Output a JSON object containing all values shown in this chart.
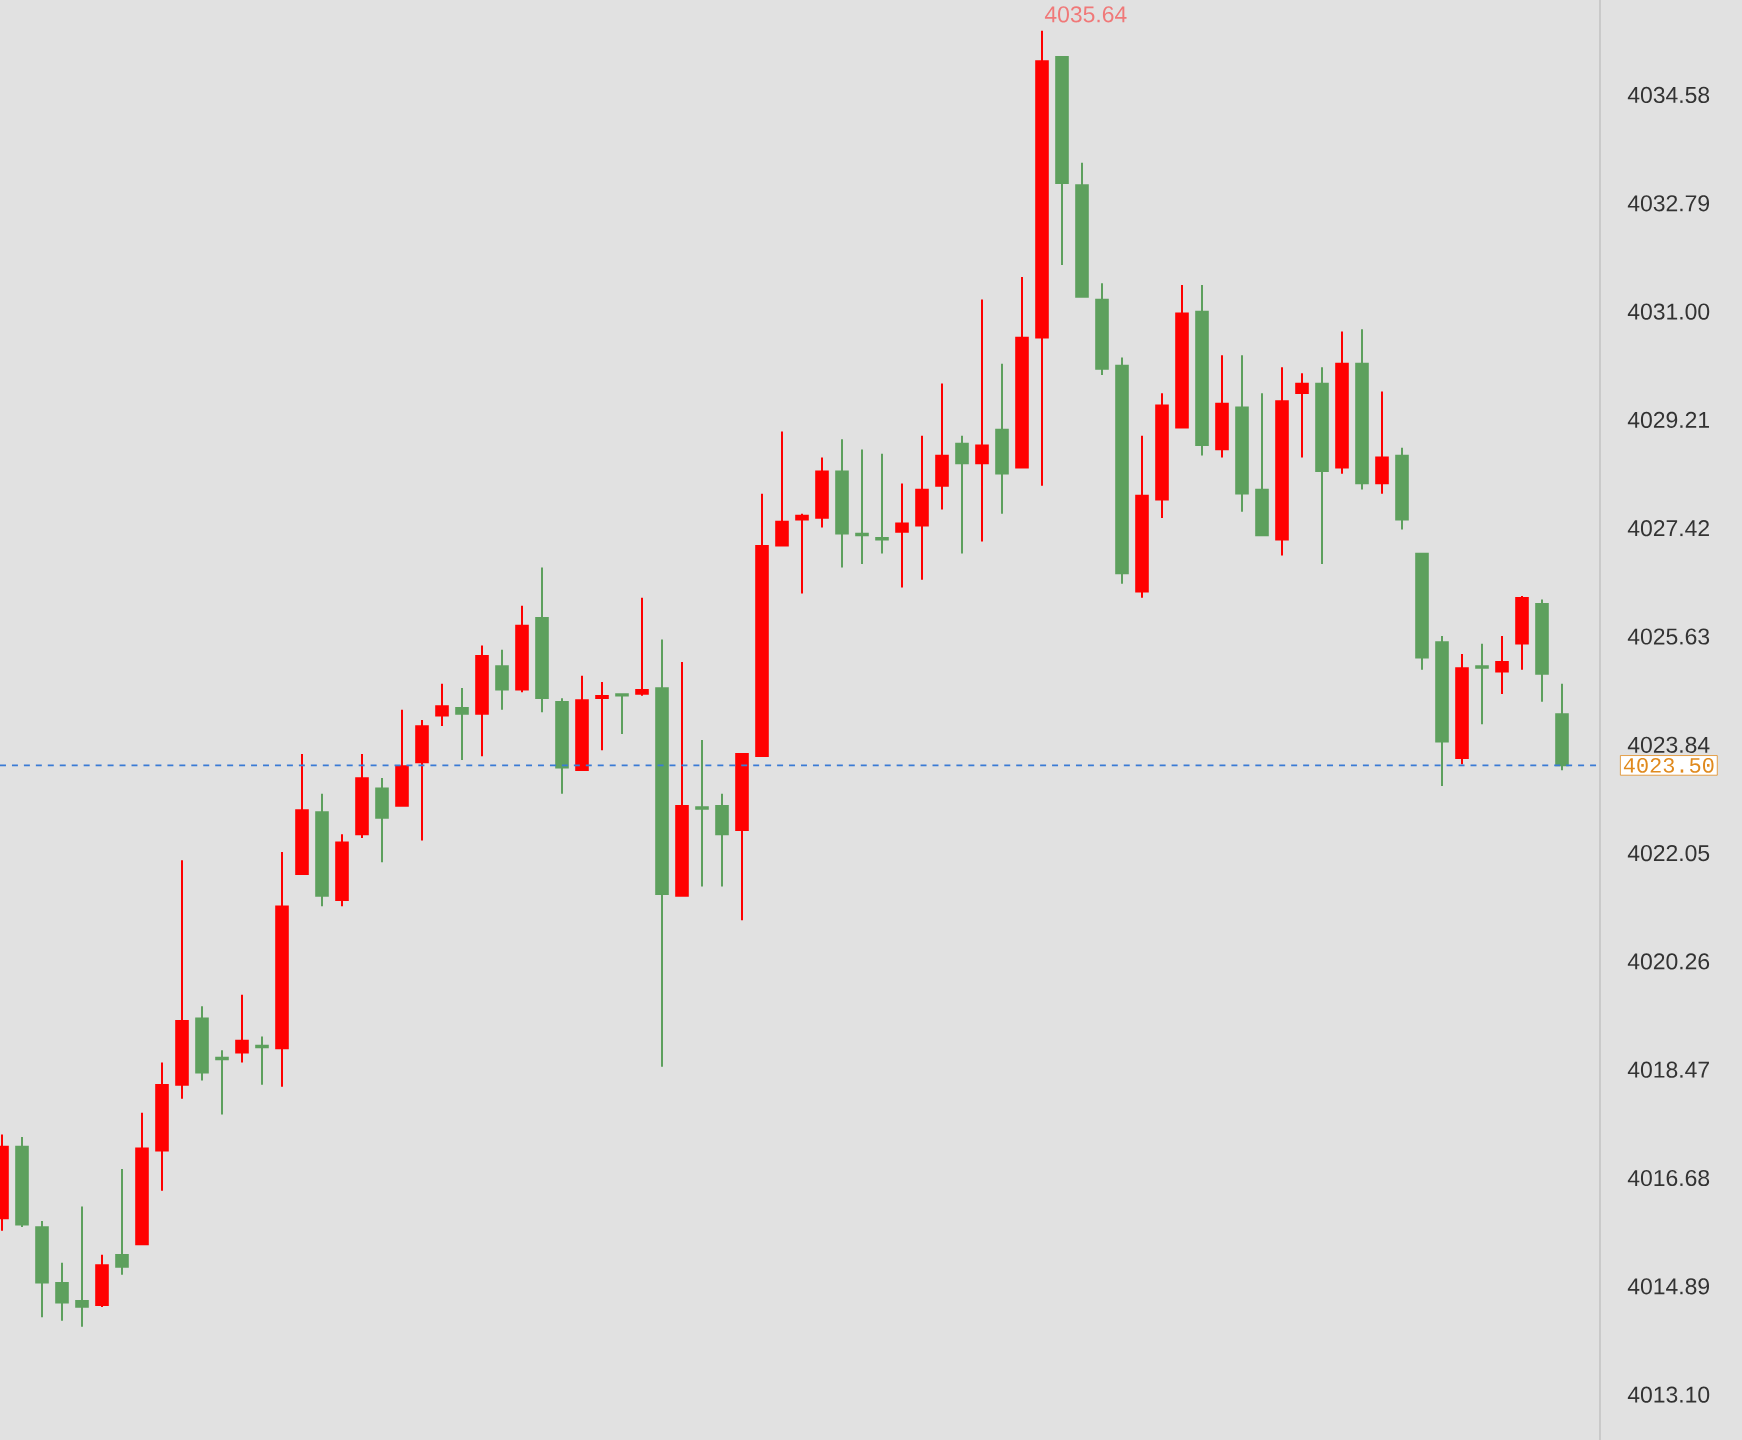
{
  "chart_data": {
    "type": "candlestick",
    "tick_labels": "y",
    "categories": [
      null,
      null,
      null,
      null,
      null,
      null,
      null,
      null,
      null,
      null,
      null,
      null,
      null,
      null,
      null,
      null,
      null,
      null,
      null,
      null,
      null,
      null,
      null,
      null,
      null,
      null,
      null,
      null,
      null,
      null,
      null,
      null,
      null,
      null,
      null,
      null,
      null,
      null,
      null,
      null,
      null,
      null,
      null,
      null,
      null,
      null,
      null,
      null,
      null,
      null,
      null,
      null,
      null,
      null,
      null,
      null,
      null,
      null,
      null,
      null,
      null,
      null,
      null,
      null,
      null,
      null,
      null,
      null,
      null,
      null,
      null,
      null,
      null,
      null,
      null,
      null,
      null,
      null,
      null
    ],
    "ohlc": [
      [
        4016.01,
        4017.4,
        4015.81,
        4017.2
      ],
      [
        4017.2,
        4017.36,
        4015.87,
        4015.91
      ],
      [
        4015.87,
        4015.97,
        4014.38,
        4014.95
      ],
      [
        4014.95,
        4015.28,
        4014.32,
        4014.62
      ],
      [
        4014.65,
        4016.21,
        4014.22,
        4014.55
      ],
      [
        4014.58,
        4015.41,
        4014.55,
        4015.24
      ],
      [
        4015.41,
        4016.83,
        4015.08,
        4015.21
      ],
      [
        4015.58,
        4017.76,
        4015.58,
        4017.17
      ],
      [
        4017.13,
        4018.59,
        4016.47,
        4018.22
      ],
      [
        4018.22,
        4021.93,
        4017.99,
        4019.28
      ],
      [
        4019.32,
        4019.52,
        4018.29,
        4018.42
      ],
      [
        4018.67,
        4018.79,
        4017.73,
        4018.64
      ],
      [
        4018.75,
        4019.71,
        4018.59,
        4018.95
      ],
      [
        4018.87,
        4019.02,
        4018.22,
        4018.84
      ],
      [
        4018.82,
        4022.07,
        4018.19,
        4021.17
      ],
      [
        4021.7,
        4023.69,
        4021.7,
        4022.76
      ],
      [
        4022.73,
        4023.03,
        4021.17,
        4021.34
      ],
      [
        4021.27,
        4022.36,
        4021.17,
        4022.23
      ],
      [
        4022.36,
        4023.69,
        4022.3,
        4023.29
      ],
      [
        4023.12,
        4023.29,
        4021.9,
        4022.63
      ],
      [
        4022.83,
        4024.42,
        4022.83,
        4023.49
      ],
      [
        4023.55,
        4024.25,
        4022.26,
        4024.15
      ],
      [
        4024.32,
        4024.85,
        4024.15,
        4024.48
      ],
      [
        4024.45,
        4024.78,
        4023.59,
        4024.35
      ],
      [
        4024.35,
        4025.48,
        4023.65,
        4025.31
      ],
      [
        4025.14,
        4025.41,
        4024.42,
        4024.75
      ],
      [
        4024.75,
        4026.14,
        4024.71,
        4025.81
      ],
      [
        4025.94,
        4026.77,
        4024.38,
        4024.61
      ],
      [
        4024.55,
        4024.61,
        4023.03,
        4023.46
      ],
      [
        4023.42,
        4024.98,
        4023.42,
        4024.58
      ],
      [
        4024.61,
        4024.88,
        4023.75,
        4024.65
      ],
      [
        4024.68,
        4024.68,
        4024.02,
        4024.65
      ],
      [
        4024.68,
        4026.27,
        4024.65,
        4024.75
      ],
      [
        4024.78,
        4025.58,
        4018.52,
        4021.37
      ],
      [
        4021.34,
        4025.21,
        4021.34,
        4022.83
      ],
      [
        4022.81,
        4023.92,
        4021.5,
        4022.78
      ],
      [
        4022.83,
        4023.03,
        4021.5,
        4022.36
      ],
      [
        4022.43,
        4023.69,
        4020.94,
        4023.69
      ],
      [
        4023.65,
        4027.99,
        4023.65,
        4027.13
      ],
      [
        4027.13,
        4029.02,
        4027.13,
        4027.53
      ],
      [
        4027.56,
        4027.66,
        4026.34,
        4027.63
      ],
      [
        4027.59,
        4028.59,
        4027.43,
        4028.36
      ],
      [
        4028.36,
        4028.89,
        4026.77,
        4027.33
      ],
      [
        4027.33,
        4028.72,
        4026.83,
        4027.3
      ],
      [
        4027.26,
        4028.65,
        4027.0,
        4027.23
      ],
      [
        4027.36,
        4028.16,
        4026.44,
        4027.5
      ],
      [
        4027.46,
        4028.95,
        4026.57,
        4028.06
      ],
      [
        4028.12,
        4029.81,
        4027.73,
        4028.62
      ],
      [
        4028.82,
        4028.95,
        4027.0,
        4028.49
      ],
      [
        4028.49,
        4031.2,
        4027.2,
        4028.79
      ],
      [
        4029.05,
        4030.14,
        4027.66,
        4028.32
      ],
      [
        4028.42,
        4031.57,
        4028.42,
        4030.57
      ],
      [
        4030.57,
        4035.64,
        4028.12,
        4035.14
      ],
      [
        4035.21,
        4035.21,
        4031.77,
        4033.12
      ],
      [
        4033.09,
        4033.46,
        4031.24,
        4031.24
      ],
      [
        4031.2,
        4031.47,
        4029.95,
        4030.05
      ],
      [
        4030.11,
        4030.24,
        4026.5,
        4026.67
      ],
      [
        4026.37,
        4028.95,
        4026.27,
        4027.96
      ],
      [
        4027.89,
        4029.65,
        4027.59,
        4029.45
      ],
      [
        4029.08,
        4031.44,
        4029.08,
        4030.97
      ],
      [
        4031.0,
        4031.44,
        4028.62,
        4028.79
      ],
      [
        4028.72,
        4030.28,
        4028.59,
        4029.48
      ],
      [
        4029.42,
        4030.28,
        4027.69,
        4027.99
      ],
      [
        4028.06,
        4029.65,
        4027.3,
        4027.3
      ],
      [
        4027.23,
        4030.08,
        4026.97,
        4029.52
      ],
      [
        4029.65,
        4029.98,
        4028.59,
        4029.81
      ],
      [
        4029.81,
        4030.08,
        4026.83,
        4028.36
      ],
      [
        4028.42,
        4030.67,
        4028.32,
        4030.14
      ],
      [
        4030.14,
        4030.71,
        4028.06,
        4028.16
      ],
      [
        4028.16,
        4029.68,
        4027.99,
        4028.59
      ],
      [
        4028.62,
        4028.75,
        4027.4,
        4027.56
      ],
      [
        4027.0,
        4027.0,
        4025.08,
        4025.28
      ],
      [
        4025.54,
        4025.64,
        4023.16,
        4023.89
      ],
      [
        4023.62,
        4025.34,
        4023.52,
        4025.11
      ],
      [
        4025.14,
        4025.51,
        4024.18,
        4025.11
      ],
      [
        4025.05,
        4025.64,
        4024.68,
        4025.21
      ],
      [
        4025.51,
        4026.3,
        4025.08,
        4026.27
      ],
      [
        4026.17,
        4026.24,
        4024.55,
        4025.01
      ],
      [
        4024.35,
        4024.85,
        4023.42,
        4023.5
      ]
    ],
    "colors": [
      "#ff0000",
      "#5da05d",
      "#5da05d",
      "#5da05d",
      "#5da05d",
      "#ff0000",
      "#5da05d",
      "#ff0000",
      "#ff0000",
      "#ff0000",
      "#5da05d",
      "#5da05d",
      "#ff0000",
      "#5da05d",
      "#ff0000",
      "#ff0000",
      "#5da05d",
      "#ff0000",
      "#ff0000",
      "#5da05d",
      "#ff0000",
      "#ff0000",
      "#ff0000",
      "#5da05d",
      "#ff0000",
      "#5da05d",
      "#ff0000",
      "#5da05d",
      "#5da05d",
      "#ff0000",
      "#ff0000",
      "#5da05d",
      "#ff0000",
      "#5da05d",
      "#ff0000",
      "#5da05d",
      "#5da05d",
      "#ff0000",
      "#ff0000",
      "#ff0000",
      "#ff0000",
      "#ff0000",
      "#5da05d",
      "#5da05d",
      "#5da05d",
      "#ff0000",
      "#ff0000",
      "#ff0000",
      "#5da05d",
      "#ff0000",
      "#5da05d",
      "#ff0000",
      "#ff0000",
      "#5da05d",
      "#5da05d",
      "#5da05d",
      "#5da05d",
      "#ff0000",
      "#ff0000",
      "#ff0000",
      "#5da05d",
      "#ff0000",
      "#5da05d",
      "#5da05d",
      "#ff0000",
      "#ff0000",
      "#5da05d",
      "#ff0000",
      "#5da05d",
      "#ff0000",
      "#5da05d",
      "#5da05d",
      "#5da05d",
      "#ff0000",
      "#5da05d",
      "#ff0000",
      "#ff0000",
      "#5da05d",
      "#5da05d"
    ],
    "ylim": [
      4012.35,
      4036.15
    ],
    "yticks": [
      {
        "value": 4013.1,
        "label": "4013.10"
      },
      4014.89,
      4016.68,
      4018.47,
      4020.26,
      4022.05,
      4023.84,
      4025.63,
      4027.42,
      4029.21,
      {
        "value": 4031,
        "label": "4031.00"
      },
      4032.79,
      4034.58
    ],
    "ref_lines": [
      {
        "axis": "y",
        "value": 4023.5,
        "label": "4023.50",
        "color": "#3a7bd5",
        "line_style": "dashed"
      }
    ],
    "annotations": [
      "4035.64"
    ]
  }
}
